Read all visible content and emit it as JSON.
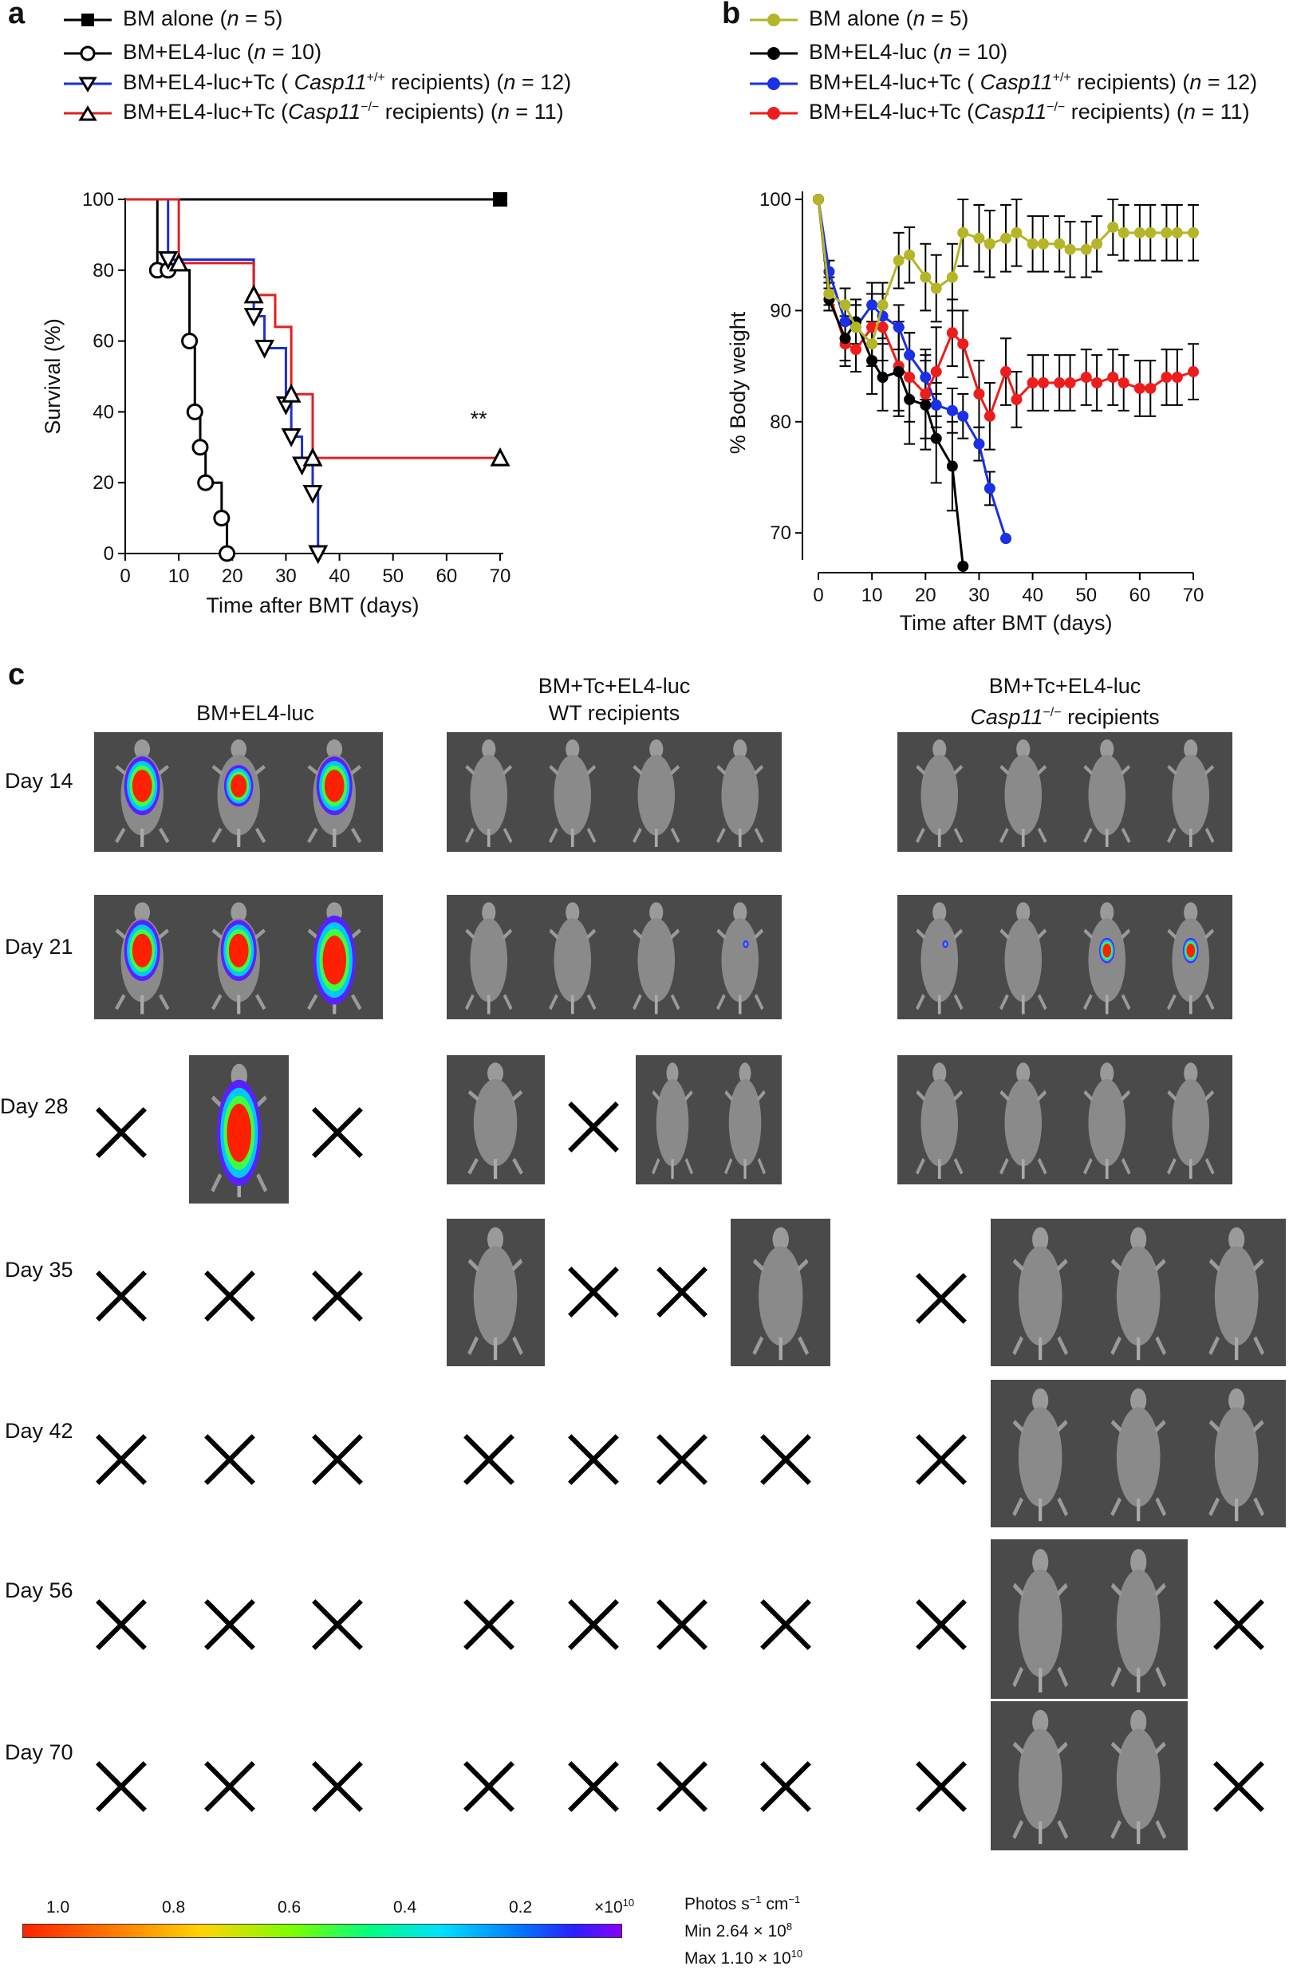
{
  "panel_a": {
    "letter": "a",
    "legend": [
      {
        "label": "BM alone (",
        "n": "n",
        "rest": " = 5)",
        "marker": "square",
        "color": "#000000"
      },
      {
        "label": "BM+EL4-luc (",
        "n": "n",
        "rest": " = 10)",
        "marker": "circle",
        "color": "#000000"
      },
      {
        "label": "BM+EL4-luc+Tc ( ",
        "gene": "Casp11",
        "sup": "+/+",
        "mid": " recipients) (",
        "n": "n",
        "rest": " = 12)",
        "marker": "triangle-down",
        "color": "#1a2fd6"
      },
      {
        "label": "BM+EL4-luc+Tc (",
        "gene": "Casp11",
        "sup": "−/−",
        "mid": " recipients) (",
        "n": "n",
        "rest": " = 11)",
        "marker": "triangle-up",
        "color": "#e02020"
      }
    ],
    "significance": "**"
  },
  "panel_b": {
    "letter": "b",
    "legend": [
      {
        "label": "BM alone (",
        "n": "n",
        "rest": " = 5)",
        "color": "#b5b528"
      },
      {
        "label": "BM+EL4-luc (",
        "n": "n",
        "rest": " = 10)",
        "color": "#000000"
      },
      {
        "label": "BM+EL4-luc+Tc ( ",
        "gene": "Casp11",
        "sup": "+/+",
        "mid": " recipients) (",
        "n": "n",
        "rest": " = 12)",
        "color": "#1a2fe6"
      },
      {
        "label": "BM+EL4-luc+Tc (",
        "gene": "Casp11",
        "sup": "−/−",
        "mid": " recipients) (",
        "n": "n",
        "rest": " = 11)",
        "color": "#ee1c1c"
      }
    ]
  },
  "chart_data": [
    {
      "type": "line",
      "subtype": "kaplan-meier",
      "title": "",
      "xlabel": "Time after BMT (days)",
      "ylabel": "Survival (%)",
      "xlim": [
        0,
        70
      ],
      "ylim": [
        0,
        100
      ],
      "xticks": [
        0,
        10,
        20,
        30,
        40,
        50,
        60,
        70
      ],
      "yticks": [
        0,
        20,
        40,
        60,
        80,
        100
      ],
      "series": [
        {
          "name": "BM alone (n = 5)",
          "color": "#000000",
          "marker": "square",
          "steps": [
            [
              0,
              100
            ],
            [
              70,
              100
            ]
          ],
          "markers": [
            [
              70,
              100
            ]
          ]
        },
        {
          "name": "BM+EL4-luc (n = 10)",
          "color": "#000000",
          "marker": "circle",
          "steps": [
            [
              0,
              100
            ],
            [
              6,
              100
            ],
            [
              6,
              80
            ],
            [
              8,
              80
            ],
            [
              8,
              80
            ],
            [
              10,
              80
            ],
            [
              10,
              80
            ],
            [
              12,
              80
            ],
            [
              12,
              60
            ],
            [
              13,
              60
            ],
            [
              13,
              40
            ],
            [
              14,
              40
            ],
            [
              14,
              30
            ],
            [
              15,
              30
            ],
            [
              15,
              20
            ],
            [
              18,
              20
            ],
            [
              18,
              10
            ],
            [
              19,
              10
            ],
            [
              19,
              0
            ],
            [
              20,
              0
            ]
          ],
          "markers": [
            [
              6,
              80
            ],
            [
              8,
              80
            ],
            [
              12,
              60
            ],
            [
              13,
              40
            ],
            [
              14,
              30
            ],
            [
              15,
              20
            ],
            [
              18,
              10
            ],
            [
              19,
              0
            ]
          ]
        },
        {
          "name": "BM+EL4-luc+Tc (Casp11+/+ recipients) (n = 12)",
          "color": "#1a2fd6",
          "marker": "triangle-down",
          "steps": [
            [
              0,
              100
            ],
            [
              8,
              100
            ],
            [
              8,
              83
            ],
            [
              18,
              83
            ],
            [
              18,
              83
            ],
            [
              24,
              83
            ],
            [
              24,
              67
            ],
            [
              26,
              67
            ],
            [
              26,
              58
            ],
            [
              30,
              58
            ],
            [
              30,
              42
            ],
            [
              31,
              42
            ],
            [
              31,
              33
            ],
            [
              33,
              33
            ],
            [
              33,
              25
            ],
            [
              35,
              25
            ],
            [
              35,
              17
            ],
            [
              36,
              17
            ],
            [
              36,
              0
            ],
            [
              37,
              0
            ]
          ],
          "markers": [
            [
              8,
              83
            ],
            [
              24,
              67
            ],
            [
              26,
              58
            ],
            [
              30,
              42
            ],
            [
              31,
              33
            ],
            [
              33,
              25
            ],
            [
              35,
              17
            ],
            [
              36,
              0
            ]
          ]
        },
        {
          "name": "BM+EL4-luc+Tc (Casp11−/− recipients) (n = 11)",
          "color": "#e02020",
          "marker": "triangle-up",
          "steps": [
            [
              0,
              100
            ],
            [
              10,
              100
            ],
            [
              10,
              82
            ],
            [
              24,
              82
            ],
            [
              24,
              73
            ],
            [
              28,
              73
            ],
            [
              28,
              64
            ],
            [
              31,
              64
            ],
            [
              31,
              45
            ],
            [
              35,
              45
            ],
            [
              35,
              27
            ],
            [
              70,
              27
            ]
          ],
          "markers": [
            [
              10,
              82
            ],
            [
              24,
              73
            ],
            [
              31,
              45
            ],
            [
              35,
              27
            ],
            [
              70,
              27
            ]
          ]
        }
      ]
    },
    {
      "type": "line",
      "title": "",
      "xlabel": "Time after BMT (days)",
      "ylabel": "% Body weight",
      "xlim": [
        0,
        70
      ],
      "ylim": [
        67,
        100
      ],
      "xticks": [
        0,
        10,
        20,
        30,
        40,
        50,
        60,
        70
      ],
      "yticks": [
        70,
        80,
        90,
        100
      ],
      "series": [
        {
          "name": "BM alone (n = 5)",
          "color": "#b5b528",
          "x": [
            0,
            2,
            5,
            7,
            10,
            12,
            15,
            17,
            20,
            22,
            25,
            27,
            30,
            32,
            35,
            37,
            40,
            42,
            45,
            47,
            50,
            52,
            55,
            57,
            60,
            62,
            65,
            67,
            70
          ],
          "y": [
            100,
            91.5,
            90.5,
            88.5,
            87,
            90.5,
            94.5,
            95,
            93,
            92,
            93,
            97,
            96.5,
            96,
            96.5,
            97,
            96,
            96,
            96,
            95.5,
            95.5,
            96,
            97.5,
            97,
            97,
            97,
            97,
            97,
            97
          ],
          "err": [
            0,
            1,
            1.5,
            2,
            2,
            2,
            2.5,
            2.5,
            3,
            3,
            3,
            3,
            3,
            3,
            3,
            3,
            2.5,
            2.5,
            2.5,
            2.5,
            2.5,
            2.5,
            2.5,
            2.5,
            2.5,
            2.5,
            2.5,
            2.5,
            2.5
          ]
        },
        {
          "name": "BM+EL4-luc (n = 10)",
          "color": "#000000",
          "x": [
            0,
            2,
            5,
            7,
            10,
            12,
            15,
            17,
            20,
            22,
            25,
            27
          ],
          "y": [
            100,
            91,
            87.5,
            89,
            85.5,
            84,
            84.5,
            82,
            81.5,
            78.5,
            76,
            67
          ],
          "err": [
            0,
            1,
            2,
            2,
            3,
            3,
            4,
            4,
            4,
            4,
            4,
            0
          ]
        },
        {
          "name": "BM+EL4-luc+Tc (Casp11+/+) (n = 12)",
          "color": "#1a2fe6",
          "x": [
            0,
            2,
            5,
            7,
            10,
            12,
            15,
            17,
            20,
            22,
            25,
            27,
            30,
            32,
            35
          ],
          "y": [
            100,
            93.5,
            89,
            88.5,
            90.5,
            89.5,
            88.5,
            86,
            84,
            81.5,
            81,
            80.5,
            78,
            74,
            69.5
          ],
          "err": [
            0,
            1,
            1.5,
            2,
            2,
            2,
            2,
            2,
            2,
            2,
            2,
            2,
            1.5,
            1.5,
            0
          ]
        },
        {
          "name": "BM+EL4-luc+Tc (Casp11−/−) (n = 11)",
          "color": "#ee1c1c",
          "x": [
            0,
            2,
            5,
            7,
            10,
            12,
            15,
            17,
            20,
            22,
            25,
            27,
            30,
            32,
            35,
            37,
            40,
            42,
            45,
            47,
            50,
            52,
            55,
            57,
            60,
            62,
            65,
            67,
            70
          ],
          "y": [
            100,
            91.5,
            87,
            86.5,
            88.5,
            88.5,
            85,
            84,
            82.5,
            84.5,
            88,
            87,
            82.5,
            80.5,
            84.5,
            82,
            83.5,
            83.5,
            83.5,
            83.5,
            84,
            83.5,
            84,
            83.5,
            83,
            83,
            84,
            84,
            84.5
          ],
          "err": [
            0,
            1.5,
            2,
            2,
            3,
            3,
            4,
            4,
            4,
            4,
            3,
            3,
            3,
            3,
            3,
            2.5,
            2.5,
            2.5,
            2.5,
            2.5,
            2.5,
            2.5,
            2.5,
            2.5,
            2.5,
            2.5,
            2.5,
            2.5,
            2.5
          ]
        }
      ]
    }
  ],
  "panel_c": {
    "letter": "c",
    "groups": [
      {
        "title_line1": "BM+EL4-luc",
        "title_line2": ""
      },
      {
        "title_line1": "BM+Tc+EL4-luc",
        "title_line2": "WT recipients"
      },
      {
        "title_line1": "BM+Tc+EL4-luc",
        "title_line2_gene": "Casp11",
        "title_line2_sup": "−/−",
        "title_line2_rest": " recipients"
      }
    ],
    "days": [
      "Day 14",
      "Day 21",
      "Day  28",
      "Day 35",
      "Day 42",
      "Day 56",
      "Day 70"
    ],
    "colorbar": {
      "ticks": [
        "1.0",
        "0.8",
        "0.6",
        "0.4",
        "0.2"
      ],
      "multiplier": "×10",
      "multiplier_exp": "10",
      "unit_line": "Photos s",
      "unit_sup1": "−1",
      "unit_mid": " cm",
      "unit_sup2": "−1",
      "min_label": "Min 2.64 × 10",
      "min_exp": "8",
      "max_label": "Max 1.10 × 10",
      "max_exp": "10"
    }
  }
}
